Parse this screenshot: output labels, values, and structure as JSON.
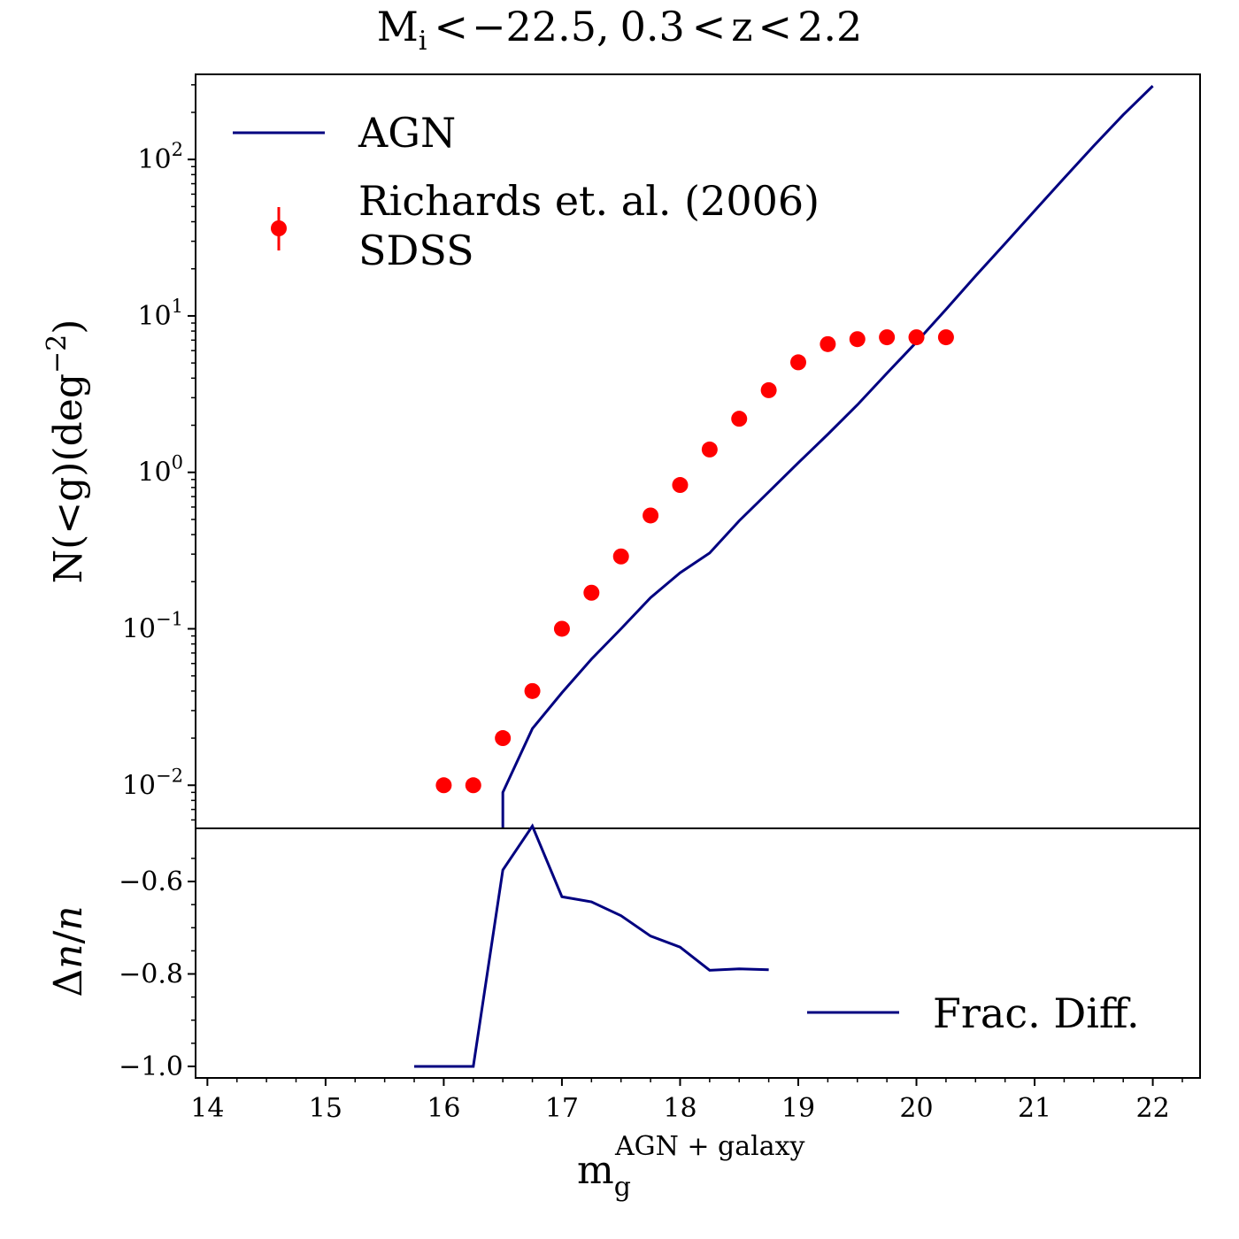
{
  "chart_data": [
    {
      "panel": "top",
      "type": "line",
      "title": "M_i < −22.5, 0.3 < z < 2.2",
      "title_parts": {
        "M": "M",
        "i": "i",
        "lt1": "<",
        "neg": "−22.5,",
        "range": "0.3",
        "lt2": "<",
        "z": "z",
        "lt3": "<",
        "hi": "2.2"
      },
      "ylabel": "N(<g)(deg⁻²)",
      "ylabel_parts": {
        "main": "N(<g)(deg",
        "sup": "−2",
        "end": ")"
      },
      "yscale": "log",
      "ylim": [
        0.0053,
        350
      ],
      "xlim": [
        13.9,
        22.4
      ],
      "yticks": [
        {
          "value": 0.01,
          "base": "10",
          "exp": "−2"
        },
        {
          "value": 0.1,
          "base": "10",
          "exp": "−1"
        },
        {
          "value": 1,
          "base": "10",
          "exp": "0"
        },
        {
          "value": 10,
          "base": "10",
          "exp": "1"
        },
        {
          "value": 100,
          "base": "10",
          "exp": "2"
        }
      ],
      "series": [
        {
          "name": "AGN",
          "kind": "line",
          "color": "#000080",
          "x": [
            16.5,
            16.5,
            16.75,
            17.0,
            17.25,
            17.5,
            17.75,
            18.0,
            18.25,
            18.5,
            18.75,
            19.0,
            19.25,
            19.5,
            19.75,
            20.0,
            20.25,
            20.5,
            20.75,
            21.0,
            21.25,
            21.5,
            21.75,
            22.0
          ],
          "y": [
            0.0053,
            0.009,
            0.023,
            0.039,
            0.064,
            0.1,
            0.158,
            0.228,
            0.305,
            0.49,
            0.75,
            1.15,
            1.75,
            2.7,
            4.3,
            6.8,
            11,
            18,
            29,
            47,
            76,
            122,
            193,
            295
          ]
        },
        {
          "name": "Richards et. al. (2006)\nSDSS",
          "legend_lines": [
            "Richards et. al. (2006)",
            "SDSS"
          ],
          "kind": "scatter",
          "color": "#ff0000",
          "x": [
            16.0,
            16.25,
            16.5,
            16.75,
            17.0,
            17.25,
            17.5,
            17.75,
            18.0,
            18.25,
            18.5,
            18.75,
            19.0,
            19.25,
            19.5,
            19.75,
            20.0,
            20.25
          ],
          "y": [
            0.01,
            0.01,
            0.02,
            0.04,
            0.1,
            0.17,
            0.29,
            0.53,
            0.83,
            1.4,
            2.2,
            3.35,
            5.05,
            6.6,
            7.1,
            7.3,
            7.3,
            7.3
          ]
        }
      ],
      "legend_position": "top-left"
    },
    {
      "panel": "bottom",
      "type": "line",
      "ylabel": "Δn/n",
      "ylabel_parts": {
        "delta": "Δ",
        "n1": "n",
        "slash": "/",
        "n2": "n"
      },
      "xlabel": "m_g^(AGN + galaxy)",
      "xlabel_parts": {
        "m": "m",
        "sub": "g",
        "sup": "AGN + galaxy"
      },
      "ylim": [
        -1.025,
        -0.485
      ],
      "xlim": [
        13.9,
        22.4
      ],
      "xticks": [
        "14",
        "15",
        "16",
        "17",
        "18",
        "19",
        "20",
        "21",
        "22"
      ],
      "yticks": [
        {
          "value": -0.6,
          "label": "−0.6"
        },
        {
          "value": -0.8,
          "label": "−0.8"
        },
        {
          "value": -1.0,
          "label": "−1.0"
        }
      ],
      "series": [
        {
          "name": "Frac. Diff.",
          "kind": "line",
          "color": "#000080",
          "x": [
            15.75,
            16.0,
            16.25,
            16.5,
            16.75,
            17.0,
            17.25,
            17.5,
            17.75,
            18.0,
            18.25,
            18.5,
            18.75
          ],
          "y": [
            -1.0,
            -1.0,
            -1.0,
            -0.575,
            -0.48,
            -0.633,
            -0.644,
            -0.674,
            -0.718,
            -0.742,
            -0.792,
            -0.789,
            -0.791
          ]
        }
      ],
      "legend_position": "lower-right"
    }
  ]
}
